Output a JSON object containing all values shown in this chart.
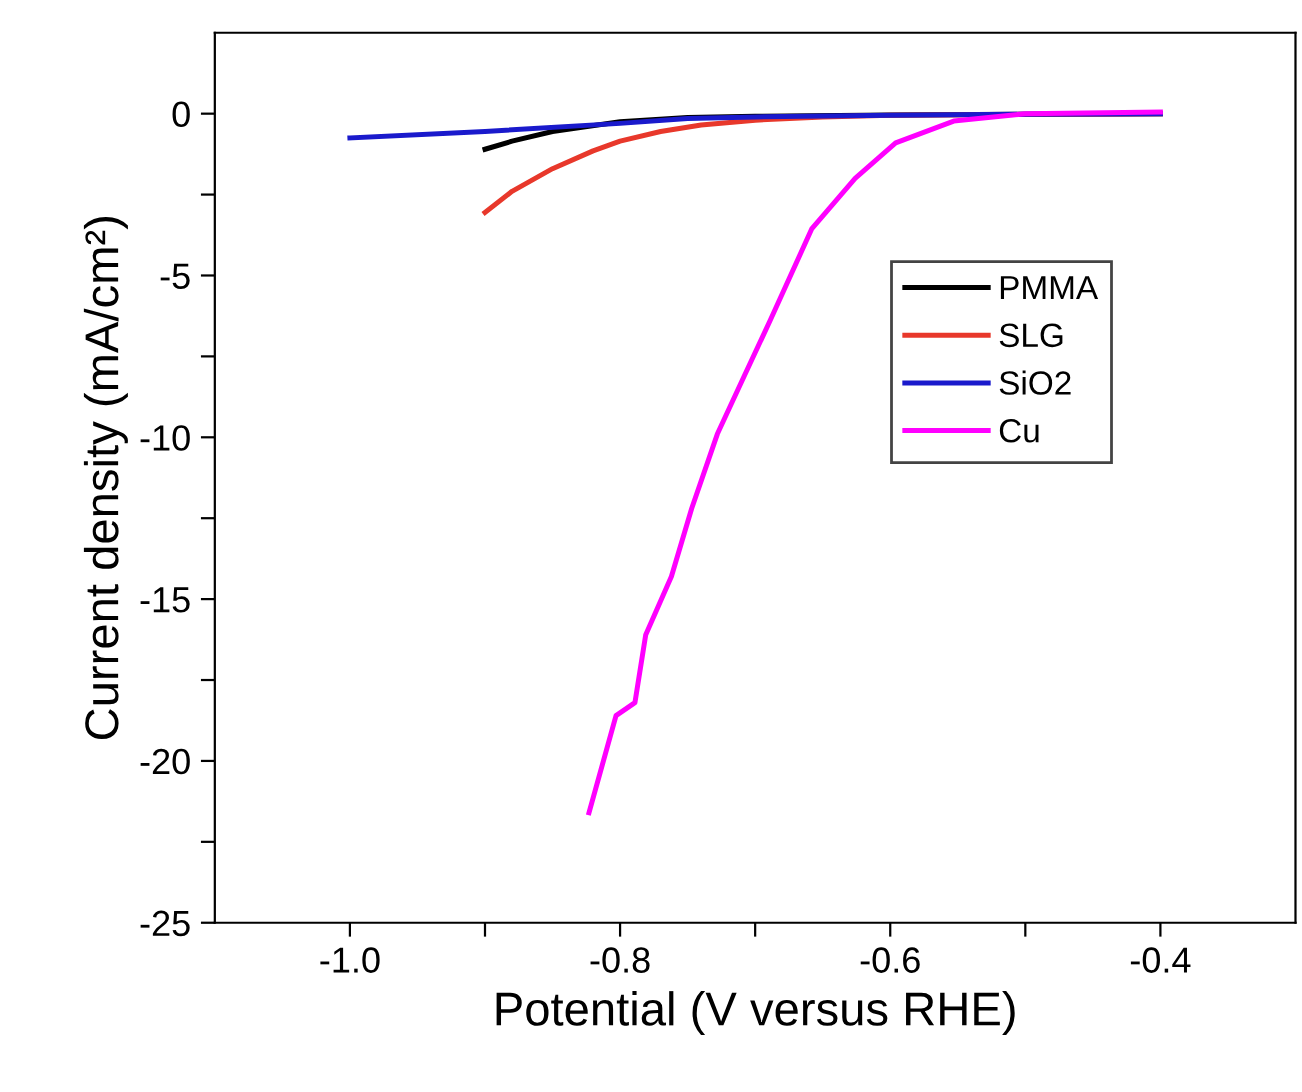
{
  "chart_data": {
    "type": "line",
    "xlabel": "Potential (V versus RHE)",
    "ylabel": "Current density (mA/cm²)",
    "xlim": [
      -1.1,
      -0.3
    ],
    "xticks": [
      {
        "value": -1.0,
        "label": "-1.0"
      },
      {
        "value": -0.9,
        "label": null
      },
      {
        "value": -0.8,
        "label": "-0.8"
      },
      {
        "value": -0.7,
        "label": null
      },
      {
        "value": -0.6,
        "label": "-0.6"
      },
      {
        "value": -0.5,
        "label": null
      },
      {
        "value": -0.4,
        "label": "-0.4"
      }
    ],
    "ylim": [
      -25,
      2.5
    ],
    "yticks": [
      {
        "value": 0,
        "label": "0"
      },
      {
        "value": -2.5,
        "label": null
      },
      {
        "value": -5,
        "label": "-5"
      },
      {
        "value": -7.5,
        "label": null
      },
      {
        "value": -10,
        "label": "-10"
      },
      {
        "value": -12.5,
        "label": null
      },
      {
        "value": -15,
        "label": "-15"
      },
      {
        "value": -17.5,
        "label": null
      },
      {
        "value": -20,
        "label": "-20"
      },
      {
        "value": -22.5,
        "label": null
      },
      {
        "value": -25,
        "label": "-25"
      }
    ],
    "grid": false,
    "legend": "right",
    "series": [
      {
        "name": "PMMA",
        "color": "#000000",
        "x": [
          -0.9,
          -0.88,
          -0.85,
          -0.8,
          -0.75,
          -0.7,
          -0.6,
          -0.4
        ],
        "values": [
          -1.1,
          -0.85,
          -0.55,
          -0.25,
          -0.12,
          -0.08,
          -0.04,
          0
        ]
      },
      {
        "name": "SLG",
        "color": "#e8382b",
        "x": [
          -0.9,
          -0.88,
          -0.85,
          -0.82,
          -0.8,
          -0.77,
          -0.74,
          -0.7,
          -0.65,
          -0.6,
          -0.4
        ],
        "values": [
          -3.05,
          -2.4,
          -1.7,
          -1.15,
          -0.85,
          -0.55,
          -0.35,
          -0.2,
          -0.1,
          -0.05,
          0
        ]
      },
      {
        "name": "SiO2",
        "color": "#1a1acc",
        "x": [
          -1.0,
          -0.9,
          -0.8,
          -0.75,
          -0.7,
          -0.6,
          -0.5,
          -0.4
        ],
        "values": [
          -0.75,
          -0.55,
          -0.3,
          -0.15,
          -0.1,
          -0.05,
          -0.02,
          0
        ]
      },
      {
        "name": "Cu",
        "color": "#ff00ff",
        "x": [
          -0.823,
          -0.803,
          -0.789,
          -0.781,
          -0.762,
          -0.747,
          -0.728,
          -0.708,
          -0.689,
          -0.658,
          -0.626,
          -0.596,
          -0.553,
          -0.5,
          -0.4
        ],
        "values": [
          -21.6,
          -18.6,
          -18.2,
          -16.1,
          -14.3,
          -12.2,
          -9.9,
          -8.1,
          -6.4,
          -3.55,
          -2.0,
          -0.9,
          -0.23,
          0,
          0.05
        ]
      }
    ]
  }
}
